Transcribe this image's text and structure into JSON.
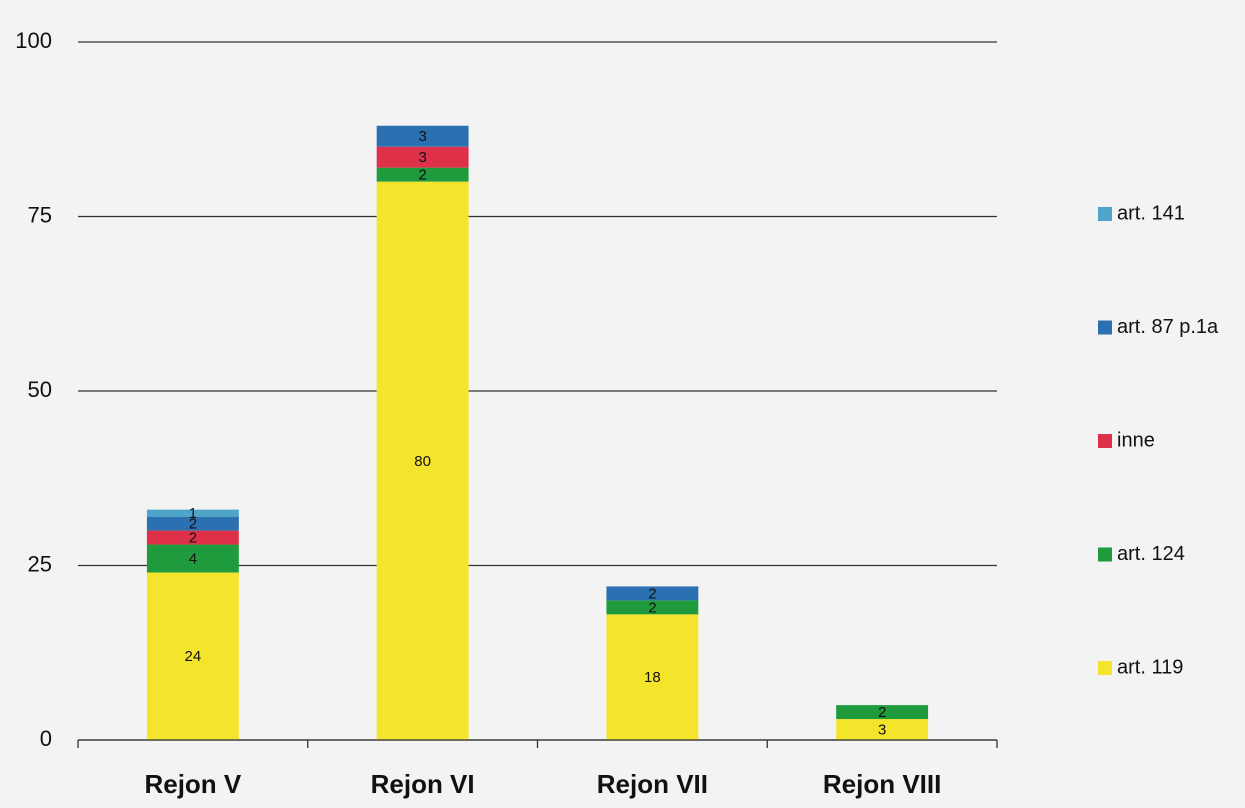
{
  "chart_data": {
    "type": "stacked_bar",
    "categories": [
      "Rejon V",
      "Rejon VI",
      "Rejon VII",
      "Rejon VIII"
    ],
    "series": [
      {
        "name": "art. 119",
        "color": "#f4e52c",
        "values": [
          24,
          80,
          18,
          3
        ]
      },
      {
        "name": "art. 124",
        "color": "#1f9b3e",
        "values": [
          4,
          2,
          2,
          2
        ]
      },
      {
        "name": "inne",
        "color": "#df3049",
        "values": [
          2,
          3,
          0,
          0
        ]
      },
      {
        "name": "art. 87 p.1a",
        "color": "#2b70b1",
        "values": [
          2,
          3,
          2,
          0
        ]
      },
      {
        "name": "art. 141",
        "color": "#4ea5c9",
        "values": [
          1,
          0,
          0,
          0
        ]
      }
    ],
    "ylim": [
      0,
      100
    ],
    "yticks": [
      0,
      25,
      50,
      75,
      100
    ],
    "grid": true,
    "legend": "right"
  }
}
